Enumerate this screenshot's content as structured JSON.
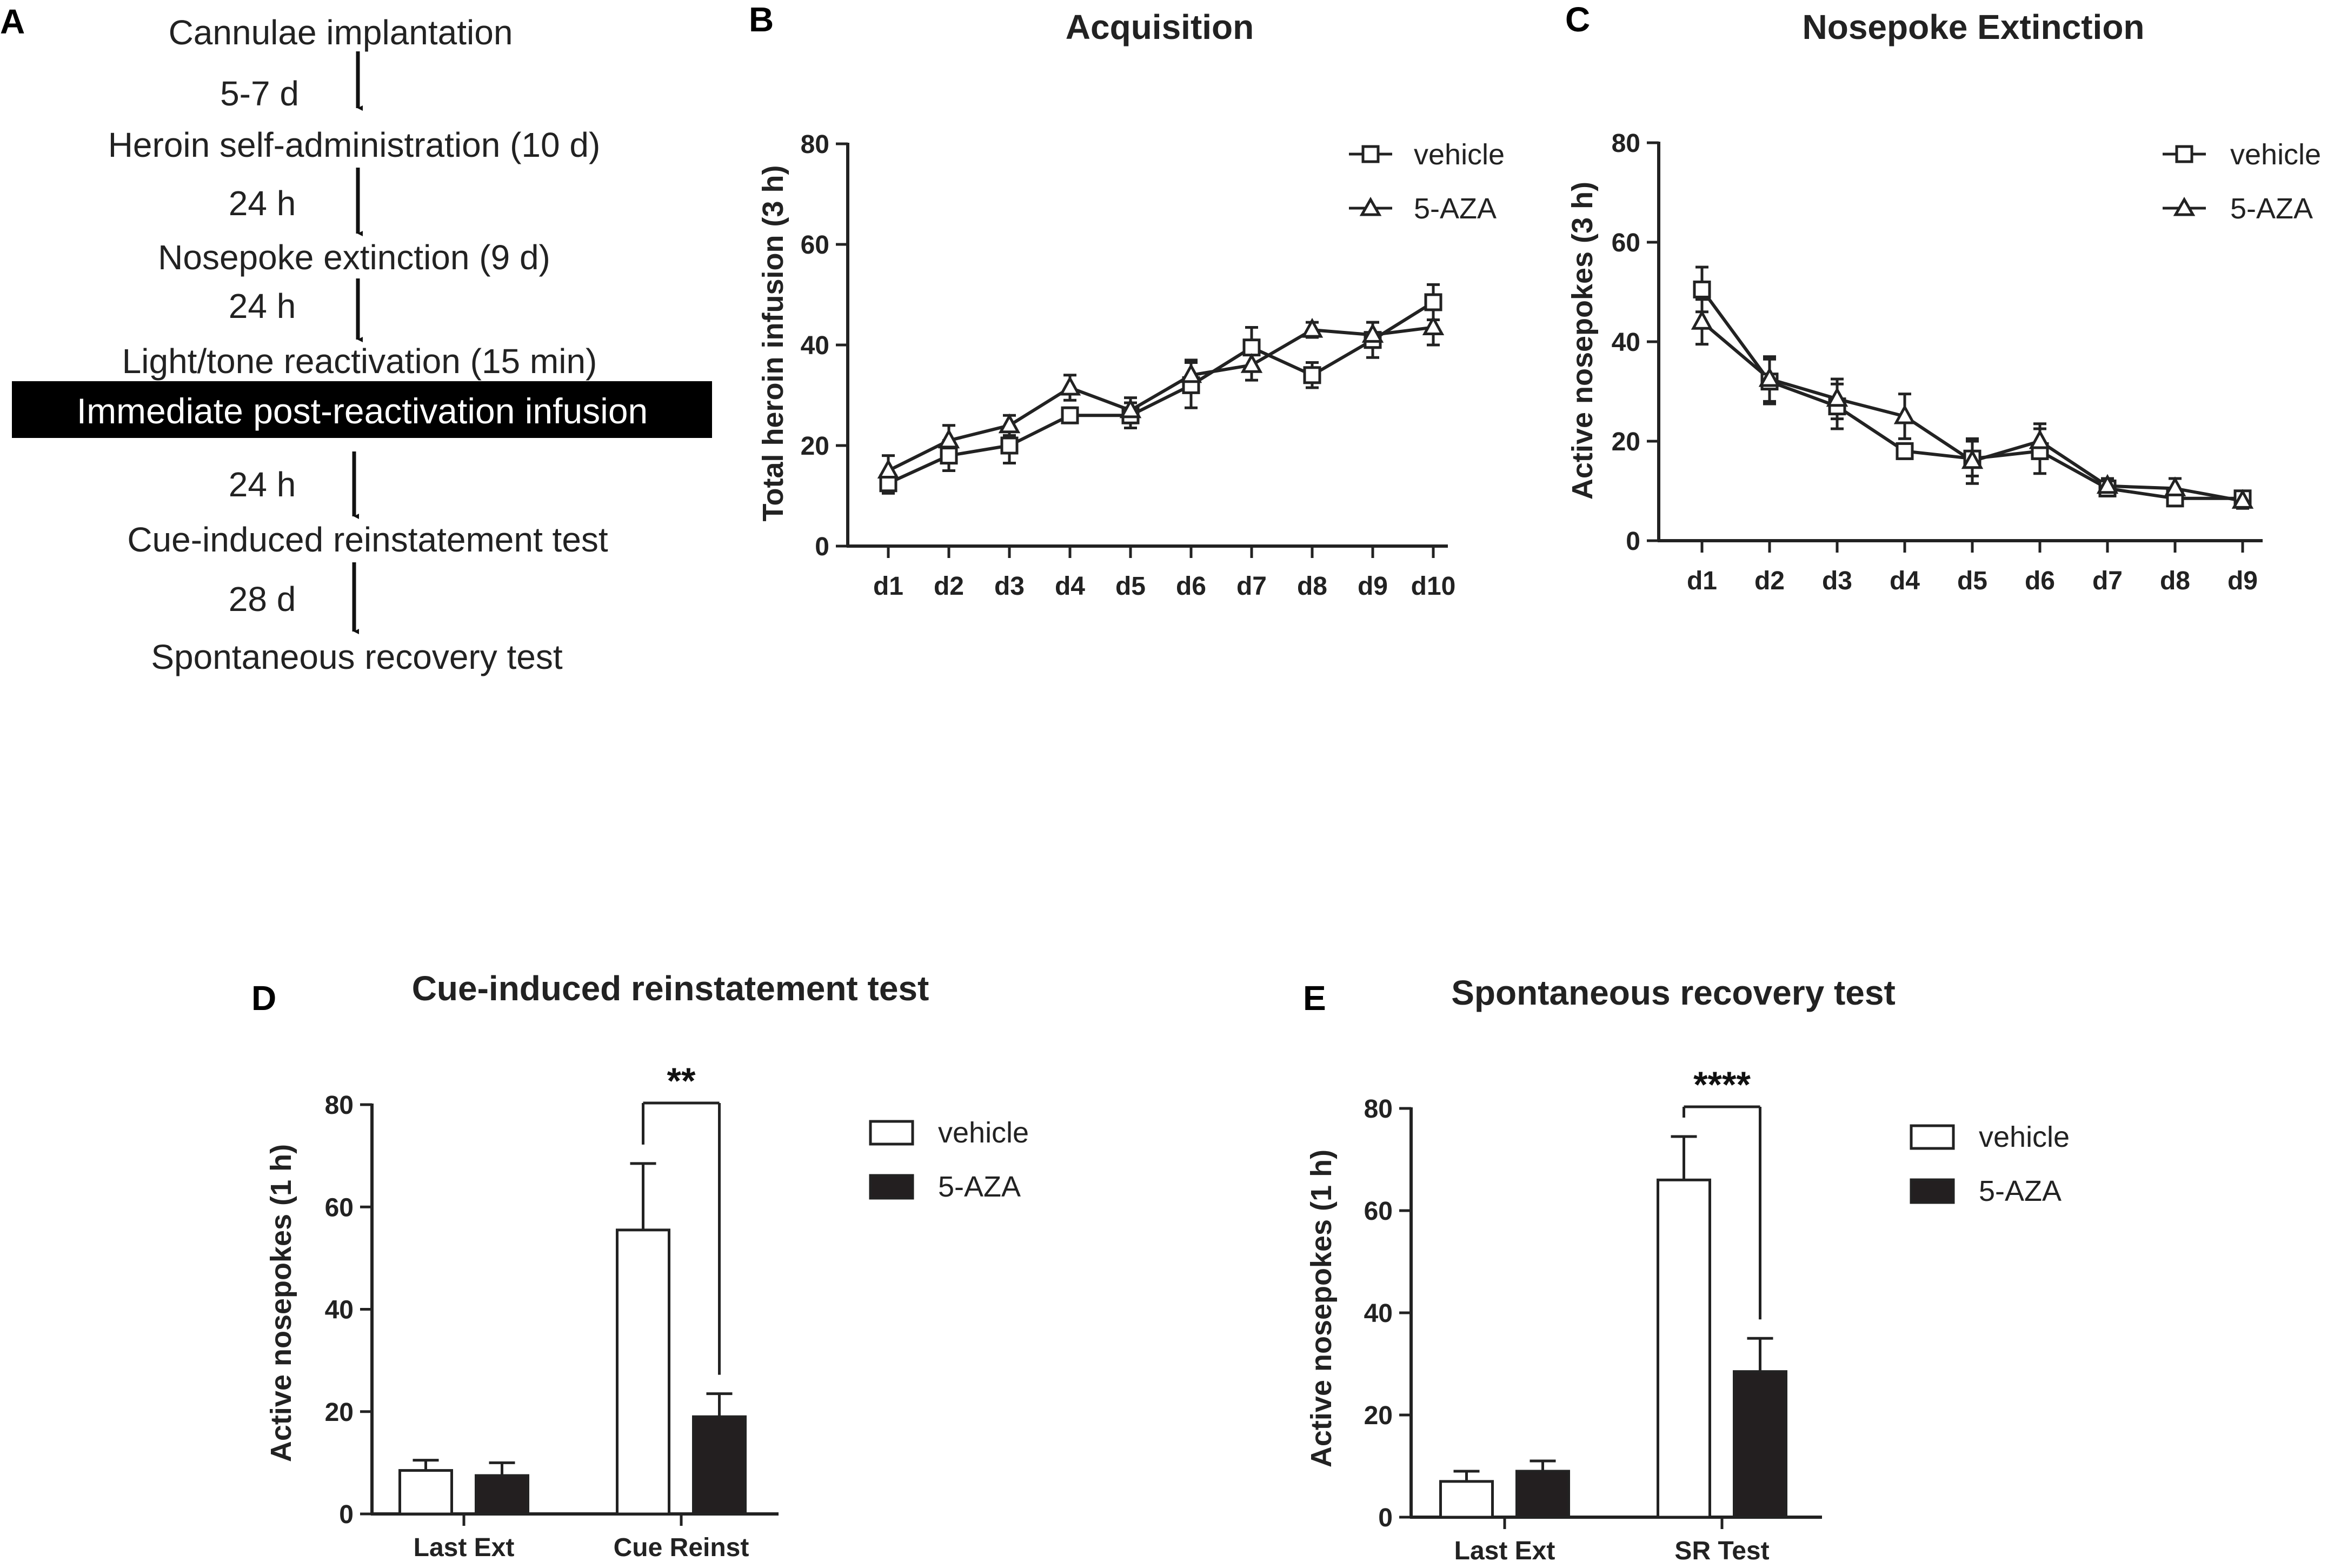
{
  "panel_letters": {
    "a": "A",
    "b": "B",
    "c": "C",
    "d": "D",
    "e": "E"
  },
  "timeline": {
    "steps": [
      "Cannulae implantation",
      "Heroin self-administration (10 d)",
      "Nosepoke extinction (9 d)",
      "Light/tone reactivation (15 min)",
      "Immediate post-reactivation  infusion",
      "Cue-induced reinstatement test",
      "Spontaneous recovery test"
    ],
    "intervals": [
      "5-7 d",
      "24 h",
      "24 h",
      "24 h",
      "28 d"
    ],
    "colors": {
      "highlight_bg": "#000000",
      "highlight_text": "#ffffff"
    }
  },
  "chart_data": [
    {
      "type": "line",
      "panel": "B",
      "title": "Acquisition",
      "xlabel": "",
      "ylabel": "Total heroin infusion (3 h)",
      "categories": [
        "d1",
        "d2",
        "d3",
        "d4",
        "d5",
        "d6",
        "d7",
        "d8",
        "d9",
        "d10"
      ],
      "ylim": [
        0,
        80
      ],
      "yticks": [
        "0",
        "20",
        "40",
        "60",
        "80"
      ],
      "legend": [
        "vehicle",
        "5-AZA"
      ],
      "legend_position": "top-right",
      "series": [
        {
          "name": "vehicle",
          "marker": "square",
          "values": [
            12.5,
            18,
            20,
            26,
            26,
            32,
            39.5,
            34,
            41,
            48.5
          ],
          "errors": [
            2,
            3,
            3.5,
            1.5,
            2.5,
            4.5,
            4,
            2.5,
            3.5,
            3.5
          ]
        },
        {
          "name": "5-AZA",
          "marker": "triangle",
          "values": [
            15,
            21,
            24,
            31.5,
            27,
            34,
            36,
            43,
            42,
            43.5
          ],
          "errors": [
            3,
            3,
            2,
            2.5,
            2.5,
            3,
            3,
            1.5,
            2.5,
            3.5
          ]
        }
      ]
    },
    {
      "type": "line",
      "panel": "C",
      "title": "Nosepoke Extinction",
      "xlabel": "",
      "ylabel": "Active nosepokes (3 h)",
      "categories": [
        "d1",
        "d2",
        "d3",
        "d4",
        "d5",
        "d6",
        "d7",
        "d8",
        "d9"
      ],
      "ylim": [
        0,
        80
      ],
      "yticks": [
        "0",
        "20",
        "40",
        "60",
        "80"
      ],
      "legend": [
        "vehicle",
        "5-AZA"
      ],
      "legend_position": "top-right",
      "series": [
        {
          "name": "vehicle",
          "marker": "square",
          "values": [
            50.5,
            32,
            27,
            18,
            16.5,
            18,
            10.5,
            8.5,
            8.5
          ],
          "errors": [
            4.5,
            4.5,
            4.5,
            1.5,
            3.5,
            4.5,
            1.5,
            1.5,
            1.5
          ]
        },
        {
          "name": "5-AZA",
          "marker": "triangle",
          "values": [
            44,
            32.5,
            28.5,
            25,
            16,
            20,
            11,
            10.5,
            8
          ],
          "errors": [
            4.5,
            4.5,
            4,
            4.5,
            4.5,
            3.5,
            1.5,
            2,
            1.5
          ]
        }
      ]
    },
    {
      "type": "bar",
      "panel": "D",
      "title": "Cue-induced reinstatement test",
      "xlabel": "",
      "ylabel": "Active nosepokes (1 h)",
      "categories": [
        "Last Ext",
        "Cue Reinst"
      ],
      "ylim": [
        0,
        80
      ],
      "yticks": [
        "0",
        "20",
        "40",
        "60",
        "80"
      ],
      "legend": [
        "vehicle",
        "5-AZA"
      ],
      "legend_position": "right",
      "significance": "**",
      "series": [
        {
          "name": "vehicle",
          "fill": "#ffffff",
          "values": [
            8.5,
            55.5
          ],
          "errors": [
            2,
            13
          ]
        },
        {
          "name": "5-AZA",
          "fill": "#231f20",
          "values": [
            7.5,
            19
          ],
          "errors": [
            2.5,
            4.5
          ]
        }
      ]
    },
    {
      "type": "bar",
      "panel": "E",
      "title": "Spontaneous recovery test",
      "xlabel": "",
      "ylabel": "Active nosepokes (1 h)",
      "categories": [
        "Last Ext",
        "SR Test"
      ],
      "ylim": [
        0,
        80
      ],
      "yticks": [
        "0",
        "20",
        "40",
        "60",
        "80"
      ],
      "legend": [
        "vehicle",
        "5-AZA"
      ],
      "legend_position": "right",
      "significance": "****",
      "series": [
        {
          "name": "vehicle",
          "fill": "#ffffff",
          "values": [
            7,
            66
          ],
          "errors": [
            2,
            8.5
          ]
        },
        {
          "name": "5-AZA",
          "fill": "#231f20",
          "values": [
            9,
            28.5
          ],
          "errors": [
            2,
            6.5
          ]
        }
      ]
    }
  ]
}
